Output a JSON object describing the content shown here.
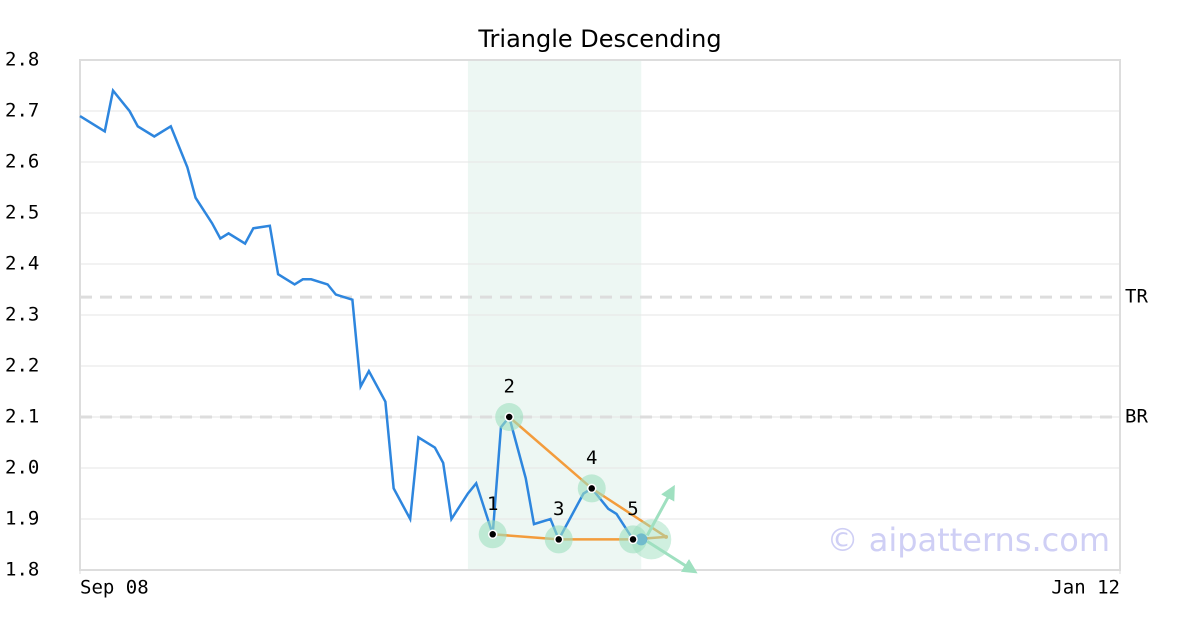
{
  "chart_data": {
    "type": "line",
    "title": "Triangle Descending",
    "x": [
      0,
      3,
      4,
      6,
      7,
      9,
      11,
      13,
      14,
      16,
      17,
      18,
      20,
      21,
      23,
      24,
      26,
      27,
      28,
      30,
      31,
      33,
      34,
      35,
      37,
      38,
      40,
      41,
      43,
      44,
      45,
      47,
      48,
      50,
      51,
      52,
      54,
      55,
      57,
      58,
      59,
      61,
      62,
      64,
      65,
      67,
      68
    ],
    "values": [
      2.69,
      2.66,
      2.74,
      2.7,
      2.67,
      2.65,
      2.67,
      2.59,
      2.53,
      2.48,
      2.45,
      2.46,
      2.44,
      2.47,
      2.475,
      2.38,
      2.36,
      2.37,
      2.37,
      2.36,
      2.34,
      2.33,
      2.16,
      2.19,
      2.13,
      1.96,
      1.9,
      2.06,
      2.04,
      2.01,
      1.9,
      1.95,
      1.97,
      1.87,
      2.08,
      2.1,
      1.98,
      1.89,
      1.9,
      1.86,
      1.89,
      1.95,
      1.96,
      1.92,
      1.91,
      1.86,
      1.86
    ],
    "color": "#2e86de",
    "xlim": [
      0,
      126
    ],
    "xticks": [
      {
        "value": 0,
        "label": "Sep 08"
      },
      {
        "value": 126,
        "label": "Jan 12"
      }
    ],
    "ylim": [
      1.8,
      2.8
    ],
    "yticks": [
      1.8,
      1.9,
      {
        "value": 2,
        "label": "2.0"
      },
      2.1,
      2.2,
      2.3,
      2.4,
      2.5,
      2.6,
      2.7,
      2.8
    ],
    "grid": true,
    "pattern": {
      "range": [
        47,
        68
      ],
      "points": [
        {
          "label": "1",
          "x": 50,
          "y": 1.87
        },
        {
          "label": "2",
          "x": 52,
          "y": 2.1
        },
        {
          "label": "3",
          "x": 58,
          "y": 1.86
        },
        {
          "label": "4",
          "x": 62,
          "y": 1.96
        },
        {
          "label": "5",
          "x": 67,
          "y": 1.86
        }
      ],
      "apex": {
        "x": 71,
        "y": 1.865
      },
      "color": "#f39c3c"
    },
    "levels": [
      {
        "label": "TR",
        "value": 2.335
      },
      {
        "label": "BR",
        "value": 2.1
      }
    ],
    "watermark": "© aipatterns.com"
  }
}
